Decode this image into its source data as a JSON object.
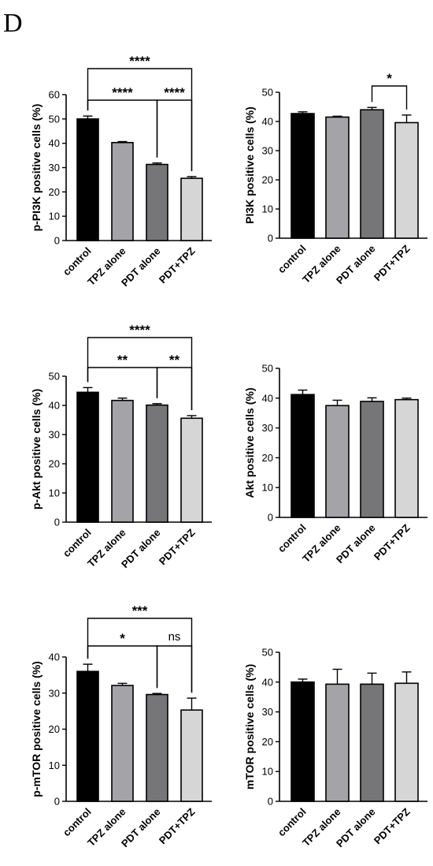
{
  "panel_label": "D",
  "colors": {
    "bars": [
      "#000000",
      "#a3a3a8",
      "#767679",
      "#d6d6d6"
    ],
    "outline": "#000000"
  },
  "chart_data": [
    {
      "type": "bar",
      "id": "p-pi3k",
      "categories": [
        "control",
        "TPZ alone",
        "PDT alone",
        "PDT+TPZ"
      ],
      "values": [
        50.0,
        40.3,
        31.3,
        25.6
      ],
      "errors": [
        1.2,
        0.4,
        0.6,
        0.7
      ],
      "ylabel": "p-PI3K positive cells (%)",
      "ylim": [
        0,
        60
      ],
      "yticks": [
        0,
        10,
        20,
        30,
        40,
        50,
        60
      ],
      "brackets": [
        {
          "from": 0,
          "to": 3,
          "label": "****"
        },
        {
          "from": 0,
          "to": 2,
          "label": "****"
        },
        {
          "from": 2,
          "to": 3,
          "label": "****"
        }
      ]
    },
    {
      "type": "bar",
      "id": "pi3k",
      "categories": [
        "control",
        "TPZ alone",
        "PDT alone",
        "PDT+TPZ"
      ],
      "values": [
        42.7,
        41.5,
        44.0,
        39.6
      ],
      "errors": [
        0.6,
        0.3,
        0.8,
        2.6
      ],
      "ylabel": "PI3K positive cells (%)",
      "ylim": [
        0,
        50
      ],
      "yticks": [
        0,
        10,
        20,
        30,
        40,
        50
      ],
      "brackets": [
        {
          "from": 2,
          "to": 3,
          "label": "*"
        }
      ]
    },
    {
      "type": "bar",
      "id": "p-akt",
      "categories": [
        "control",
        "TPZ alone",
        "PDT alone",
        "PDT+TPZ"
      ],
      "values": [
        44.5,
        41.7,
        40.1,
        35.6
      ],
      "errors": [
        1.6,
        0.8,
        0.5,
        0.9
      ],
      "ylabel": "p-Akt positive cells (%)",
      "ylim": [
        0,
        50
      ],
      "yticks": [
        0,
        10,
        20,
        30,
        40,
        50
      ],
      "brackets": [
        {
          "from": 0,
          "to": 3,
          "label": "****"
        },
        {
          "from": 0,
          "to": 2,
          "label": "**"
        },
        {
          "from": 2,
          "to": 3,
          "label": "**"
        }
      ]
    },
    {
      "type": "bar",
      "id": "akt",
      "categories": [
        "control",
        "TPZ alone",
        "PDT alone",
        "PDT+TPZ"
      ],
      "values": [
        41.2,
        37.5,
        38.9,
        39.5
      ],
      "errors": [
        1.5,
        1.8,
        1.2,
        0.5
      ],
      "ylabel": "Akt positive cells (%)",
      "ylim": [
        0,
        50
      ],
      "yticks": [
        0,
        10,
        20,
        30,
        40,
        50
      ],
      "brackets": []
    },
    {
      "type": "bar",
      "id": "p-mtor",
      "categories": [
        "control",
        "TPZ alone",
        "PDT alone",
        "PDT+TPZ"
      ],
      "values": [
        36.0,
        32.1,
        29.6,
        25.3
      ],
      "errors": [
        2.0,
        0.6,
        0.3,
        3.3
      ],
      "ylabel": "p-mTOR positive cells (%)",
      "ylim": [
        0,
        40
      ],
      "yticks": [
        0,
        10,
        20,
        30,
        40
      ],
      "brackets": [
        {
          "from": 0,
          "to": 3,
          "label": "***"
        },
        {
          "from": 0,
          "to": 2,
          "label": "*"
        },
        {
          "from": 2,
          "to": 3,
          "label": "ns"
        }
      ]
    },
    {
      "type": "bar",
      "id": "mtor",
      "categories": [
        "control",
        "TPZ alone",
        "PDT alone",
        "PDT+TPZ"
      ],
      "values": [
        40.0,
        39.3,
        39.3,
        39.6
      ],
      "errors": [
        1.0,
        5.0,
        3.7,
        3.8
      ],
      "ylabel": "mTOR positive cells (%)",
      "ylim": [
        0,
        50
      ],
      "yticks": [
        0,
        10,
        20,
        30,
        40,
        50
      ],
      "brackets": []
    }
  ]
}
